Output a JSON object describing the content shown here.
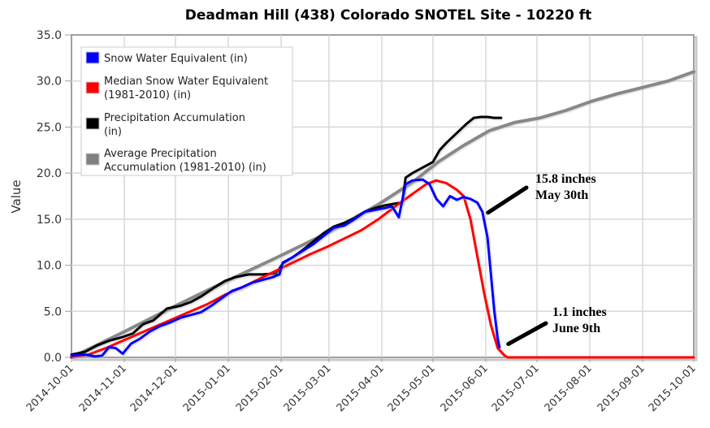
{
  "chart_data": {
    "type": "line",
    "title": "Deadman Hill (438) Colorado SNOTEL Site - 10220 ft",
    "xlabel": "",
    "ylabel": "Value",
    "ylim": [
      0,
      35
    ],
    "yticks": [
      "0.0",
      "5.0",
      "10.0",
      "15.0",
      "20.0",
      "25.0",
      "30.0",
      "35.0"
    ],
    "ytick_values": [
      0,
      5,
      10,
      15,
      20,
      25,
      30,
      35
    ],
    "xlim_days": [
      0,
      365
    ],
    "xstart": "2014-10-01",
    "xticks": [
      "2014-10-01",
      "2014-11-01",
      "2014-12-01",
      "2015-01-01",
      "2015-02-01",
      "2015-03-01",
      "2015-04-01",
      "2015-05-01",
      "2015-06-01",
      "2015-07-01",
      "2015-08-01",
      "2015-09-01",
      "2015-10-01"
    ],
    "xtick_days": [
      0,
      31,
      61,
      92,
      123,
      151,
      182,
      212,
      243,
      273,
      304,
      335,
      365
    ],
    "grid": true,
    "legend_position": "top-left",
    "series": [
      {
        "name": "Snow Water Equivalent (in)",
        "color": "#0000ff",
        "x_days": [
          0,
          8,
          14,
          18,
          22,
          26,
          30,
          35,
          40,
          46,
          52,
          58,
          64,
          70,
          76,
          82,
          88,
          94,
          100,
          106,
          112,
          118,
          122,
          124,
          130,
          136,
          142,
          148,
          154,
          160,
          166,
          172,
          178,
          184,
          188,
          192,
          194,
          196,
          200,
          206,
          210,
          214,
          218,
          222,
          226,
          230,
          234,
          238,
          241,
          244,
          246,
          248,
          250,
          251
        ],
        "values": [
          0.2,
          0.3,
          0.1,
          0.2,
          1.1,
          1.0,
          0.4,
          1.5,
          2.0,
          2.8,
          3.4,
          3.8,
          4.3,
          4.6,
          4.9,
          5.6,
          6.4,
          7.2,
          7.6,
          8.1,
          8.4,
          8.7,
          9.0,
          10.3,
          10.9,
          11.6,
          12.3,
          13.2,
          14.1,
          14.3,
          15.0,
          15.8,
          16.0,
          16.2,
          16.4,
          15.2,
          17.0,
          18.8,
          19.2,
          19.3,
          18.8,
          17.2,
          16.4,
          17.5,
          17.1,
          17.4,
          17.2,
          16.8,
          15.8,
          13.0,
          9.0,
          5.0,
          2.0,
          1.1
        ]
      },
      {
        "name": "Median Snow Water Equivalent (1981-2010) (in)",
        "color": "#ff0000",
        "x_days": [
          0,
          10,
          20,
          30,
          40,
          50,
          60,
          70,
          80,
          90,
          100,
          110,
          120,
          130,
          140,
          150,
          160,
          170,
          180,
          190,
          196,
          202,
          208,
          214,
          220,
          226,
          230,
          234,
          238,
          242,
          246,
          250,
          254,
          256,
          260,
          300,
          340,
          365
        ],
        "values": [
          0.0,
          0.3,
          1.0,
          1.8,
          2.6,
          3.4,
          4.2,
          5.0,
          5.8,
          6.8,
          7.6,
          8.5,
          9.4,
          10.3,
          11.2,
          12.0,
          12.9,
          13.8,
          15.0,
          16.4,
          17.2,
          18.0,
          18.8,
          19.2,
          18.9,
          18.2,
          17.5,
          15.0,
          11.0,
          7.0,
          3.5,
          1.0,
          0.2,
          0.0,
          0.0,
          0.0,
          0.0,
          0.0
        ]
      },
      {
        "name": "Precipitation Accumulation (in)",
        "color": "#000000",
        "x_days": [
          0,
          8,
          15,
          22,
          30,
          36,
          42,
          48,
          56,
          64,
          70,
          76,
          84,
          90,
          96,
          104,
          112,
          120,
          124,
          130,
          136,
          142,
          148,
          154,
          160,
          166,
          172,
          178,
          184,
          190,
          194,
          196,
          200,
          206,
          212,
          216,
          220,
          224,
          228,
          232,
          236,
          240,
          244,
          248,
          252
        ],
        "values": [
          0.3,
          0.6,
          1.3,
          1.8,
          2.2,
          2.6,
          3.6,
          4.0,
          5.3,
          5.6,
          6.0,
          6.6,
          7.6,
          8.3,
          8.7,
          9.0,
          9.0,
          9.1,
          10.2,
          10.9,
          11.7,
          12.6,
          13.5,
          14.2,
          14.6,
          15.1,
          15.8,
          16.2,
          16.5,
          16.7,
          16.8,
          19.5,
          20.0,
          20.6,
          21.2,
          22.5,
          23.3,
          24.0,
          24.7,
          25.4,
          26.0,
          26.1,
          26.1,
          26.0,
          26.0
        ]
      },
      {
        "name": "Average Precipitation Accumulation (1981-2010) (in)",
        "color": "#888888",
        "x_days": [
          0,
          30,
          60,
          90,
          120,
          150,
          180,
          200,
          215,
          230,
          245,
          260,
          275,
          290,
          305,
          320,
          335,
          350,
          365
        ],
        "values": [
          0.0,
          2.7,
          5.5,
          8.2,
          10.8,
          13.5,
          16.6,
          19.0,
          21.2,
          23.0,
          24.6,
          25.5,
          26.0,
          26.8,
          27.8,
          28.6,
          29.3,
          30.0,
          31.0
        ]
      }
    ],
    "annotations": [
      {
        "line1": "15.8 inches",
        "line2": "May 30th",
        "x_day": 241,
        "value": 15.8
      },
      {
        "line1": "1.1 inches",
        "line2": "June 9th",
        "x_day": 251,
        "value": 1.1
      }
    ]
  }
}
